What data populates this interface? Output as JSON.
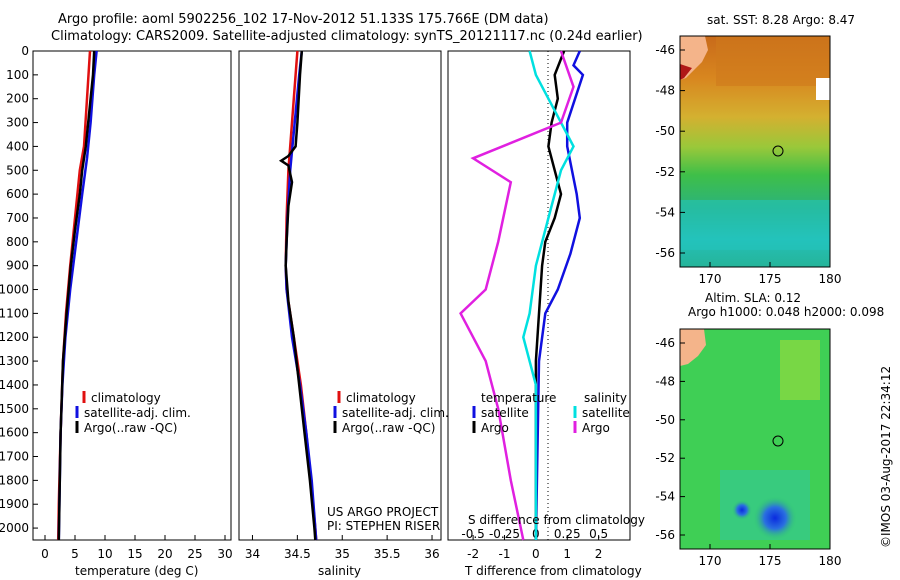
{
  "header": {
    "title_line1": "Argo profile: aoml 5902256_102 17-Nov-2012 51.133S 175.766E (DM data)",
    "title_line2": "Climatology: CARS2009. Satellite-adjusted climatology: synTS_20121117.nc (0.24d earlier)"
  },
  "colors": {
    "climatology": "#e01010",
    "satellite": "#1010e0",
    "argo": "#000000",
    "salinity_satellite": "#00e0e0",
    "salinity_argo": "#e020e0"
  },
  "chart_data": [
    {
      "type": "line",
      "xlabel": "temperature (deg C)",
      "x_ticks": [
        "0",
        "5",
        "10",
        "15",
        "20",
        "25",
        "30"
      ],
      "xlim": [
        -2,
        31
      ],
      "y_ticks": [
        "0",
        "100",
        "200",
        "300",
        "400",
        "500",
        "600",
        "700",
        "800",
        "900",
        "1000",
        "1100",
        "1200",
        "1300",
        "1400",
        "1500",
        "1600",
        "1700",
        "1800",
        "1900",
        "2000"
      ],
      "ylim": [
        0,
        2050
      ],
      "legend": [
        "climatology",
        "satellite-adj. clim.",
        "Argo(..raw -QC)"
      ],
      "series": [
        {
          "name": "climatology",
          "color": "#e01010",
          "points": [
            [
              7.5,
              0
            ],
            [
              7.0,
              200
            ],
            [
              6.5,
              400
            ],
            [
              5.8,
              500
            ],
            [
              5.0,
              700
            ],
            [
              4.2,
              900
            ],
            [
              3.5,
              1100
            ],
            [
              3.0,
              1300
            ],
            [
              2.6,
              1600
            ],
            [
              2.3,
              1900
            ],
            [
              2.2,
              2050
            ]
          ]
        },
        {
          "name": "satellite-adj. clim.",
          "color": "#1010e0",
          "points": [
            [
              8.6,
              0
            ],
            [
              8.2,
              100
            ],
            [
              7.6,
              300
            ],
            [
              7.0,
              450
            ],
            [
              6.2,
              600
            ],
            [
              5.2,
              800
            ],
            [
              4.2,
              1000
            ],
            [
              3.4,
              1200
            ],
            [
              2.9,
              1400
            ],
            [
              2.6,
              1600
            ],
            [
              2.4,
              1900
            ],
            [
              2.3,
              2050
            ]
          ]
        },
        {
          "name": "Argo(..raw -QC)",
          "color": "#000000",
          "points": [
            [
              8.2,
              0
            ],
            [
              8.0,
              100
            ],
            [
              7.4,
              250
            ],
            [
              6.8,
              400
            ],
            [
              6.2,
              500
            ],
            [
              5.8,
              600
            ],
            [
              5.0,
              750
            ],
            [
              4.3,
              900
            ],
            [
              3.6,
              1100
            ],
            [
              3.0,
              1300
            ],
            [
              2.6,
              1600
            ],
            [
              2.4,
              1900
            ],
            [
              2.3,
              2050
            ]
          ]
        }
      ]
    },
    {
      "type": "line",
      "xlabel": "salinity",
      "x_ticks": [
        "34",
        "34.5",
        "35",
        "35.5",
        "36"
      ],
      "xlim": [
        33.85,
        36.1
      ],
      "legend": [
        "climatology",
        "satellite-adj. clim.",
        "Argo(..raw -QC)"
      ],
      "annotation": [
        "US ARGO PROJECT",
        "PI: STEPHEN RISER"
      ],
      "series": [
        {
          "name": "climatology",
          "color": "#e01010",
          "points": [
            [
              34.5,
              0
            ],
            [
              34.48,
              100
            ],
            [
              34.44,
              300
            ],
            [
              34.4,
              500
            ],
            [
              34.38,
              700
            ],
            [
              34.37,
              900
            ],
            [
              34.38,
              1000
            ],
            [
              34.46,
              1200
            ],
            [
              34.54,
              1400
            ],
            [
              34.6,
              1600
            ],
            [
              34.65,
              1800
            ],
            [
              34.7,
              2000
            ],
            [
              34.71,
              2050
            ]
          ]
        },
        {
          "name": "satellite-adj. clim.",
          "color": "#1010e0",
          "points": [
            [
              34.55,
              0
            ],
            [
              34.52,
              100
            ],
            [
              34.47,
              300
            ],
            [
              34.42,
              500
            ],
            [
              34.39,
              700
            ],
            [
              34.37,
              900
            ],
            [
              34.38,
              1000
            ],
            [
              34.44,
              1200
            ],
            [
              34.53,
              1400
            ],
            [
              34.6,
              1600
            ],
            [
              34.66,
              1800
            ],
            [
              34.7,
              2000
            ],
            [
              34.71,
              2050
            ]
          ]
        },
        {
          "name": "Argo(..raw -QC)",
          "color": "#000000",
          "points": [
            [
              34.55,
              0
            ],
            [
              34.53,
              100
            ],
            [
              34.5,
              300
            ],
            [
              34.48,
              400
            ],
            [
              34.4,
              440
            ],
            [
              34.32,
              460
            ],
            [
              34.4,
              480
            ],
            [
              34.44,
              550
            ],
            [
              34.4,
              650
            ],
            [
              34.38,
              800
            ],
            [
              34.37,
              900
            ],
            [
              34.4,
              1050
            ],
            [
              34.46,
              1200
            ],
            [
              34.52,
              1400
            ],
            [
              34.58,
              1600
            ],
            [
              34.64,
              1800
            ],
            [
              34.69,
              2000
            ],
            [
              34.7,
              2050
            ]
          ]
        }
      ]
    },
    {
      "type": "line",
      "xlabel": "T difference from climatology",
      "xlabel_upper": "S difference from climatology",
      "x_ticks": [
        "-2",
        "-1",
        "0",
        "1",
        "2"
      ],
      "x_ticks_upper": [
        "-0.5",
        "-0.25",
        "0",
        "0.25",
        "0.5"
      ],
      "xlim": [
        -2.8,
        3.0
      ],
      "legend_headers": [
        "temperature",
        "salinity"
      ],
      "legend": [
        "satellite",
        "Argo",
        "satellite",
        "Argo"
      ],
      "series": [
        {
          "name": "satellite",
          "color": "#1010e0",
          "points": [
            [
              1.4,
              0
            ],
            [
              1.2,
              60
            ],
            [
              1.5,
              100
            ],
            [
              1.0,
              300
            ],
            [
              1.0,
              400
            ],
            [
              1.3,
              600
            ],
            [
              1.4,
              700
            ],
            [
              1.1,
              850
            ],
            [
              0.7,
              1000
            ],
            [
              0.3,
              1100
            ],
            [
              0.1,
              1300
            ],
            [
              0.0,
              2050
            ]
          ]
        },
        {
          "name": "Argo",
          "color": "#000000",
          "points": [
            [
              0.9,
              0
            ],
            [
              0.6,
              100
            ],
            [
              0.7,
              200
            ],
            [
              0.5,
              300
            ],
            [
              0.4,
              400
            ],
            [
              0.6,
              500
            ],
            [
              0.8,
              600
            ],
            [
              0.6,
              700
            ],
            [
              0.3,
              800
            ],
            [
              0.2,
              900
            ],
            [
              0.1,
              1100
            ],
            [
              0.0,
              1300
            ],
            [
              0.0,
              2050
            ]
          ]
        },
        {
          "name": "satellite",
          "color": "#00e0e0",
          "points": [
            [
              -0.05,
              0
            ],
            [
              0.0,
              100
            ],
            [
              0.2,
              300
            ],
            [
              0.3,
              400
            ],
            [
              0.2,
              500
            ],
            [
              0.1,
              700
            ],
            [
              0.0,
              900
            ],
            [
              -0.05,
              1100
            ],
            [
              -0.1,
              1200
            ],
            [
              0.0,
              1400
            ],
            [
              0.0,
              2050
            ]
          ]
        },
        {
          "name": "Argo",
          "color": "#e020e0",
          "points": [
            [
              0.2,
              0
            ],
            [
              0.3,
              150
            ],
            [
              0.2,
              300
            ],
            [
              -0.5,
              450
            ],
            [
              -0.2,
              550
            ],
            [
              -0.3,
              800
            ],
            [
              -0.4,
              1000
            ],
            [
              -0.6,
              1100
            ],
            [
              -0.4,
              1300
            ],
            [
              -0.3,
              1500
            ],
            [
              -0.2,
              1800
            ],
            [
              -0.1,
              2050
            ]
          ]
        }
      ]
    }
  ],
  "map_top": {
    "title": "sat. SST: 8.28 Argo: 8.47",
    "y_ticks": [
      "-46",
      "-48",
      "-50",
      "-52",
      "-54",
      "-56"
    ],
    "x_ticks": [
      "170",
      "175",
      "180"
    ]
  },
  "map_bottom": {
    "title1": "Altim. SLA: 0.12",
    "title2": "Argo h1000: 0.048 h2000: 0.098",
    "y_ticks": [
      "-46",
      "-48",
      "-50",
      "-52",
      "-54",
      "-56"
    ],
    "x_ticks": [
      "170",
      "175",
      "180"
    ]
  },
  "footer": {
    "credit": "©IMOS 03-Aug-2017 22:34:12"
  }
}
